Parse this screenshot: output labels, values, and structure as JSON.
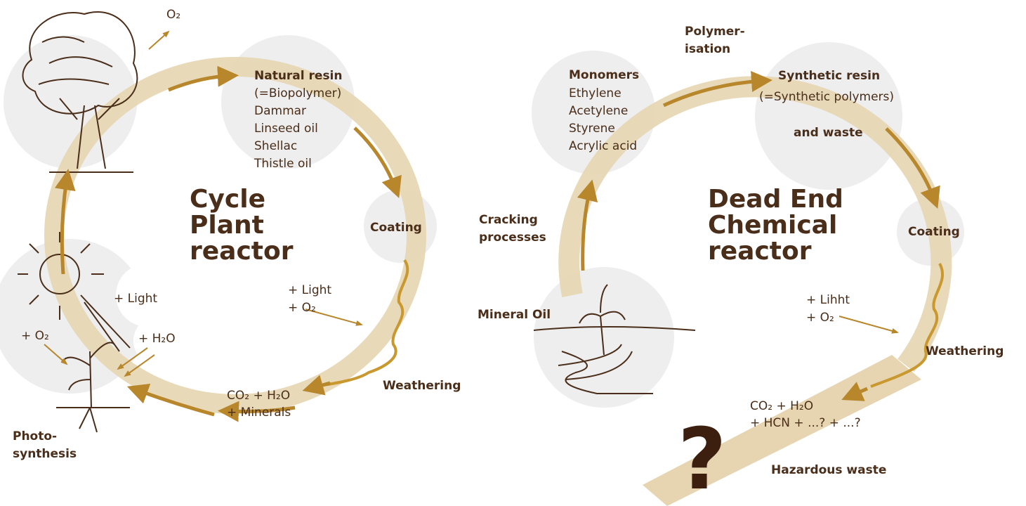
{
  "left": {
    "o2_top": "O₂",
    "resin_title": "Natural resin",
    "resin_items": [
      "(=Biopolymer)",
      "Dammar",
      "Linseed oil",
      "Shellac",
      "Thistle oil"
    ],
    "coating": "Coating",
    "title": [
      "Cycle",
      "Plant",
      "reactor"
    ],
    "sun_light": "+ Light",
    "light_o2": [
      "+ Light",
      "+ O₂"
    ],
    "weathering": "Weathering",
    "products": [
      "CO₂ + H₂O",
      "+ Minerals"
    ],
    "plant_o2": "+ O₂",
    "plant_h2o": "+ H₂O",
    "photosynthesis": [
      "Photo-",
      "synthesis"
    ]
  },
  "right": {
    "polymerisation": [
      "Polymer-",
      "isation"
    ],
    "monomers_title": "Monomers",
    "monomers_items": [
      "Ethylene",
      "Acetylene",
      "Styrene",
      "Acrylic acid"
    ],
    "resin_title": "Synthetic resin",
    "resin_sub": "(=Synthetic polymers)",
    "waste": "and waste",
    "title": [
      "Dead End",
      "Chemical",
      "reactor"
    ],
    "coating": "Coating",
    "cracking": [
      "Cracking",
      "processes"
    ],
    "mineral_oil": "Mineral Oil",
    "light_o2": [
      "+ Lihht",
      "+ O₂"
    ],
    "weathering": "Weathering",
    "products": [
      "CO₂ + H₂O",
      "+ HCN + ...? + ...?"
    ],
    "question": "?",
    "hazardous": "Hazardous waste"
  }
}
